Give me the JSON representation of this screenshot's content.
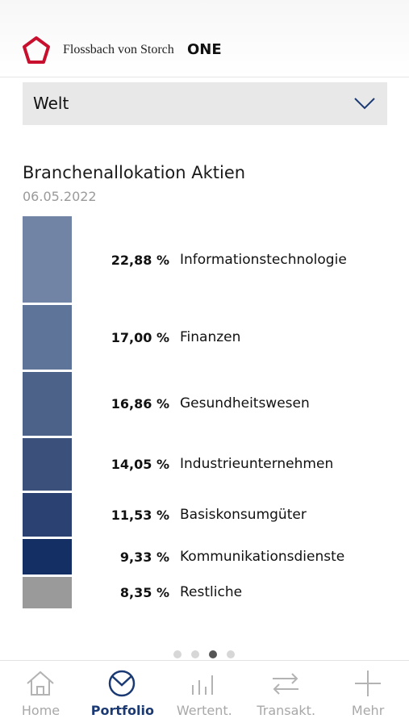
{
  "header": {
    "brand": "Flossbach von Storch",
    "brand_strong": "ONE"
  },
  "selector": {
    "value": "Welt"
  },
  "section": {
    "title": "Branchenallokation Aktien",
    "date": "06.05.2022"
  },
  "allocation": [
    {
      "percent": "22,88 %",
      "label": "Informationstechnologie",
      "value": 22.88,
      "color": "#7184a6"
    },
    {
      "percent": "17,00 %",
      "label": "Finanzen",
      "value": 17.0,
      "color": "#5f7499"
    },
    {
      "percent": "16,86 %",
      "label": "Gesundheitswesen",
      "value": 16.86,
      "color": "#4c6289"
    },
    {
      "percent": "14,05 %",
      "label": "Industrieunternehmen",
      "value": 14.05,
      "color": "#3b517c"
    },
    {
      "percent": "11,53 %",
      "label": "Basiskonsumgüter",
      "value": 11.53,
      "color": "#2a4172"
    },
    {
      "percent": "9,33 %",
      "label": "Kommunikationsdienste",
      "value": 9.33,
      "color": "#142f63"
    },
    {
      "percent": "8,35 %",
      "label": "Restliche",
      "value": 8.35,
      "color": "#9a9a9a"
    }
  ],
  "pager": {
    "count": 4,
    "active_index": 2
  },
  "tabs": [
    {
      "label": "Home",
      "icon": "home-icon",
      "active": false
    },
    {
      "label": "Portfolio",
      "icon": "portfolio-icon",
      "active": true
    },
    {
      "label": "Wertent.",
      "icon": "chart-icon",
      "active": false
    },
    {
      "label": "Transakt.",
      "icon": "transfer-icon",
      "active": false
    },
    {
      "label": "Mehr",
      "icon": "plus-icon",
      "active": false
    }
  ],
  "colors": {
    "accent": "#1b3a73",
    "logo_red": "#c8102e"
  }
}
